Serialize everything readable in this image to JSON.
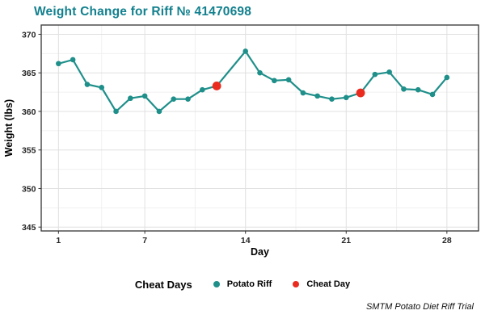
{
  "title": "Weight Change for Riff № 41470698",
  "caption": "SMTM Potato Diet Riff Trial",
  "colors": {
    "title_teal": "#12808e",
    "series_teal": "#1f8f8a",
    "cheat_red": "#ea2b1e",
    "grid_major": "#e0e0e0",
    "grid_minor": "#f0f0f0",
    "panel_border": "#343434",
    "axis_text": "#262626"
  },
  "legend": {
    "title": "Cheat Days",
    "items": [
      {
        "label": "Potato Riff",
        "color": "#1f8f8a"
      },
      {
        "label": "Cheat Day",
        "color": "#ea2b1e"
      }
    ]
  },
  "chart_data": {
    "type": "line",
    "title": "Weight Change for Riff № 41470698",
    "xlabel": "Day",
    "ylabel": "Weight (lbs)",
    "x_ticks": [
      1,
      7,
      14,
      21,
      28
    ],
    "x_minor": [
      4,
      10.5,
      17.5,
      24.5
    ],
    "y_ticks": [
      345,
      350,
      355,
      360,
      365,
      370
    ],
    "y_minor": [
      347.5,
      352.5,
      357.5,
      362.5,
      367.5
    ],
    "xlim": [
      -0.2,
      30.2
    ],
    "ylim": [
      344.5,
      371.2
    ],
    "grid": true,
    "legend_position": "bottom",
    "series": [
      {
        "name": "Potato Riff",
        "color": "#1f8f8a",
        "days": [
          1,
          2,
          3,
          4,
          5,
          6,
          7,
          8,
          9,
          10,
          11,
          12,
          13,
          14,
          15,
          16,
          17,
          18,
          19,
          20,
          21,
          22,
          23,
          24,
          25,
          26,
          27,
          28
        ],
        "values": [
          366.2,
          366.7,
          363.5,
          363.1,
          360.0,
          361.7,
          362.0,
          360.0,
          361.6,
          361.6,
          362.8,
          363.3,
          null,
          367.8,
          365.0,
          364.0,
          364.1,
          362.4,
          362.0,
          361.6,
          361.8,
          362.4,
          364.8,
          365.1,
          362.9,
          362.8,
          362.2,
          364.4
        ]
      }
    ],
    "cheat_days": [
      12,
      22
    ],
    "point_radius": 3.3,
    "cheat_point_radius": 5.4,
    "line_width": 2.2
  }
}
